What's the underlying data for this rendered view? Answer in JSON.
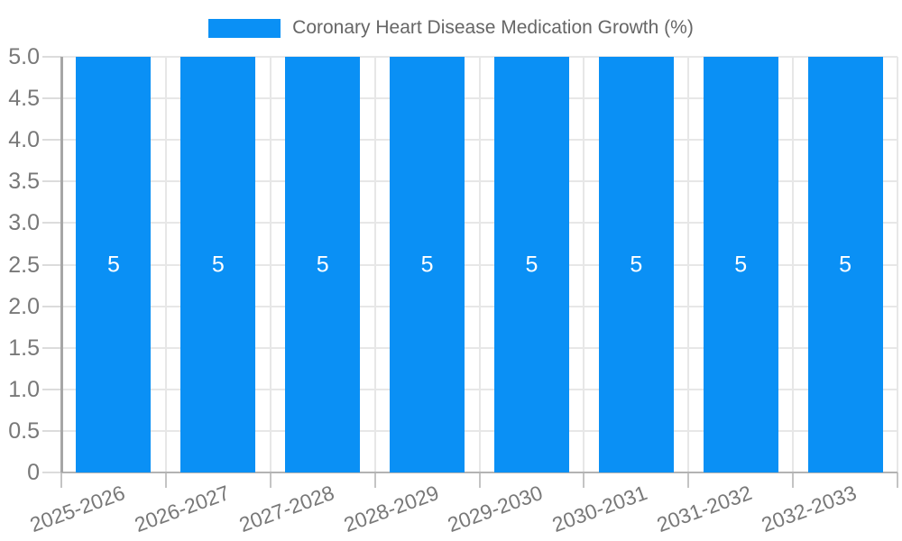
{
  "legend": {
    "label": "Coronary Heart Disease Medication Growth (%)"
  },
  "chart_data": {
    "type": "bar",
    "title": "Coronary Heart Disease Medication Growth (%)",
    "categories": [
      "2025-2026",
      "2026-2027",
      "2027-2028",
      "2028-2029",
      "2029-2030",
      "2030-2031",
      "2031-2032",
      "2032-2033"
    ],
    "values": [
      5,
      5,
      5,
      5,
      5,
      5,
      5,
      5
    ],
    "bar_value_labels": [
      "5",
      "5",
      "5",
      "5",
      "5",
      "5",
      "5",
      "5"
    ],
    "xlabel": "",
    "ylabel": "",
    "ylim": [
      0,
      5
    ],
    "ytick_values": [
      0,
      0.5,
      1,
      1.5,
      2,
      2.5,
      3,
      3.5,
      4,
      4.5,
      5
    ],
    "ytick_labels": [
      "0",
      "0.5",
      "1.0",
      "1.5",
      "2.0",
      "2.5",
      "3.0",
      "3.5",
      "4.0",
      "4.5",
      "5.0"
    ],
    "x_tick_rotation_deg": -20,
    "grid": true,
    "legend_position": "top-center",
    "colors": {
      "bar": "#0A90F5",
      "bar_value_label": "#FFFFFF",
      "grid": "#E7E7E7",
      "axis_y": "#A6A6A6",
      "axis_x": "#B3B3B3",
      "tick_mark_y": "#DCDCDC",
      "tick_mark_x": "#C4C4C4",
      "tick_label": "#787878",
      "legend_text": "#666666",
      "background": "#FFFFFF"
    }
  }
}
